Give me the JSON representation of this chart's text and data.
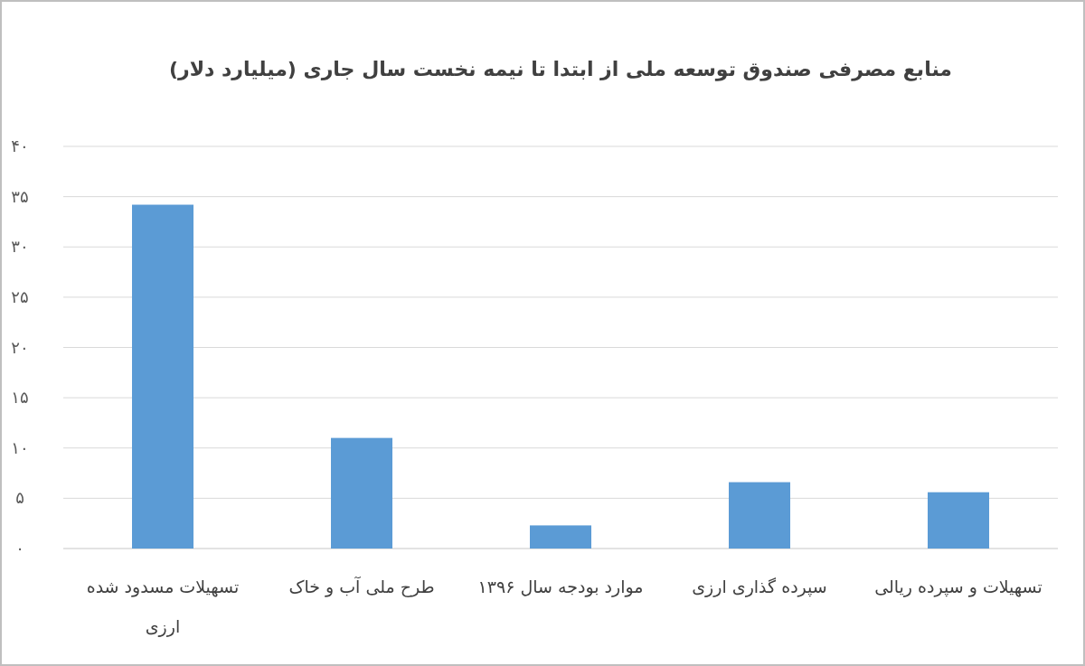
{
  "chart_data": {
    "type": "bar",
    "title": "منابع مصرفی صندوق توسعه ملی از ابتدا تا نیمه نخست سال جاری (میلیارد دلار)",
    "categories": [
      "تسهیلات مسدود شده ارزی",
      "طرح ملی آب و خاک",
      "موارد بودجه سال ۱۳۹۶",
      "سپرده گذاری ارزی",
      "تسهیلات و سپرده ریالی"
    ],
    "values": [
      34.2,
      11,
      2.3,
      6.6,
      5.6
    ],
    "color": "#5b9bd5",
    "ylim": [
      0,
      40
    ],
    "yticks": [
      {
        "value": 0,
        "label": "۰"
      },
      {
        "value": 5,
        "label": "۵"
      },
      {
        "value": 10,
        "label": "۱۰"
      },
      {
        "value": 15,
        "label": "۱۵"
      },
      {
        "value": 20,
        "label": "۲۰"
      },
      {
        "value": 25,
        "label": "۲۵"
      },
      {
        "value": 30,
        "label": "۳۰"
      },
      {
        "value": 35,
        "label": "۳۵"
      },
      {
        "value": 40,
        "label": "۴۰"
      }
    ],
    "grid": "y"
  }
}
